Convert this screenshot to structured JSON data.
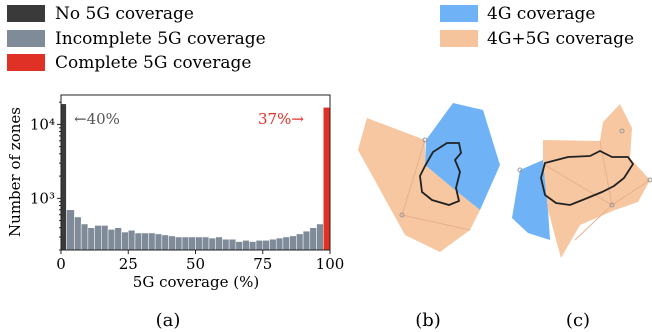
{
  "legend_left": [
    {
      "label": "No 5G coverage",
      "color": "#3a3a3a"
    },
    {
      "label": "Incomplete 5G coverage",
      "color": "#7f8b99"
    },
    {
      "label": "Complete 5G coverage",
      "color": "#e03127"
    }
  ],
  "legend_right": [
    {
      "label": "4G coverage",
      "color": "#6fb2f5"
    },
    {
      "label": "4G+5G coverage",
      "color": "#f5c49c"
    }
  ],
  "panel_labels": [
    "(a)",
    "(b)",
    "(c)"
  ],
  "chart_data": {
    "type": "bar",
    "xlabel": "5G coverage (%)",
    "ylabel": "Number of zones",
    "xlim": [
      0,
      100
    ],
    "ylim": [
      200,
      25000
    ],
    "yscale": "log",
    "xticks": [
      0,
      25,
      50,
      75,
      100
    ],
    "xtick_labels": [
      "0",
      "25",
      "50",
      "75",
      "100"
    ],
    "yticks": [
      1000,
      10000
    ],
    "ytick_labels": [
      "10³",
      "10⁴"
    ],
    "annotations": [
      {
        "text": "←40%",
        "color": "#555555"
      },
      {
        "text": "37%→",
        "color": "#e03127"
      }
    ],
    "series": [
      {
        "name": "No 5G coverage",
        "color": "#3a3a3a",
        "bins": [
          [
            0,
            2
          ]
        ],
        "values": [
          19000
        ]
      },
      {
        "name": "Incomplete 5G coverage",
        "color": "#7f8b99",
        "bins": [
          [
            2,
            5
          ],
          [
            5,
            7.5
          ],
          [
            7.5,
            10
          ],
          [
            10,
            12.5
          ],
          [
            12.5,
            15
          ],
          [
            15,
            17.5
          ],
          [
            17.5,
            20
          ],
          [
            20,
            22.5
          ],
          [
            22.5,
            25
          ],
          [
            25,
            27.5
          ],
          [
            27.5,
            30
          ],
          [
            30,
            32.5
          ],
          [
            32.5,
            35
          ],
          [
            35,
            37.5
          ],
          [
            37.5,
            40
          ],
          [
            40,
            42.5
          ],
          [
            42.5,
            45
          ],
          [
            45,
            47.5
          ],
          [
            47.5,
            50
          ],
          [
            50,
            52.5
          ],
          [
            52.5,
            55
          ],
          [
            55,
            57.5
          ],
          [
            57.5,
            60
          ],
          [
            60,
            62.5
          ],
          [
            62.5,
            65
          ],
          [
            65,
            67.5
          ],
          [
            67.5,
            70
          ],
          [
            70,
            72.5
          ],
          [
            72.5,
            75
          ],
          [
            75,
            77.5
          ],
          [
            77.5,
            80
          ],
          [
            80,
            82.5
          ],
          [
            82.5,
            85
          ],
          [
            85,
            87.5
          ],
          [
            87.5,
            90
          ],
          [
            90,
            92.5
          ],
          [
            92.5,
            95
          ],
          [
            95,
            97.5
          ]
        ],
        "values": [
          700,
          560,
          450,
          400,
          430,
          430,
          380,
          400,
          350,
          370,
          340,
          340,
          340,
          330,
          320,
          310,
          300,
          300,
          300,
          300,
          300,
          290,
          300,
          280,
          280,
          260,
          270,
          260,
          270,
          270,
          280,
          290,
          300,
          310,
          330,
          360,
          400,
          450
        ]
      },
      {
        "name": "Complete 5G coverage",
        "color": "#e03127",
        "bins": [
          [
            97.5,
            100
          ]
        ],
        "values": [
          17000
        ]
      }
    ]
  }
}
